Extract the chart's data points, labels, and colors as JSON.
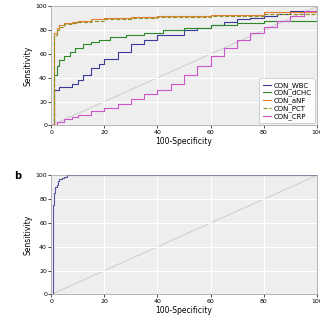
{
  "xlabel": "100-Specificity",
  "ylabel": "Sensitivity",
  "xlim": [
    0,
    100
  ],
  "ylim": [
    0,
    100
  ],
  "xticks": [
    0,
    20,
    40,
    60,
    80,
    100
  ],
  "yticks": [
    0,
    20,
    40,
    60,
    80,
    100
  ],
  "background_color": "#eeeeee",
  "grid_color": "#ffffff",
  "curves_a": {
    "CON_WBC": {
      "color": "#3a3a9a",
      "linestyle": "solid",
      "x": [
        0,
        1,
        2,
        3,
        5,
        8,
        10,
        12,
        15,
        18,
        20,
        25,
        30,
        35,
        40,
        50,
        55,
        60,
        65,
        70,
        75,
        80,
        85,
        90,
        100
      ],
      "y": [
        0,
        30,
        30,
        32,
        32,
        35,
        38,
        42,
        48,
        52,
        56,
        62,
        68,
        72,
        76,
        80,
        82,
        84,
        87,
        89,
        90,
        92,
        94,
        96,
        100
      ]
    },
    "CON_dCHC": {
      "color": "#2a8a2a",
      "linestyle": "solid",
      "x": [
        0,
        1,
        2,
        3,
        5,
        7,
        9,
        12,
        15,
        18,
        22,
        28,
        35,
        42,
        50,
        60,
        70,
        80,
        100
      ],
      "y": [
        0,
        42,
        50,
        55,
        58,
        62,
        65,
        68,
        70,
        72,
        74,
        76,
        78,
        80,
        82,
        84,
        86,
        88,
        100
      ]
    },
    "CON_aNF": {
      "color": "#e08030",
      "linestyle": "solid",
      "x": [
        0,
        1,
        2,
        3,
        5,
        8,
        10,
        15,
        20,
        30,
        40,
        60,
        80,
        100
      ],
      "y": [
        0,
        78,
        82,
        84,
        86,
        87,
        88,
        89,
        90,
        91,
        92,
        93,
        95,
        100
      ]
    },
    "CON_PCT": {
      "color": "#909020",
      "linestyle": "dashed",
      "x": [
        0,
        1,
        2,
        3,
        5,
        8,
        10,
        15,
        20,
        30,
        40,
        60,
        80,
        100
      ],
      "y": [
        0,
        76,
        80,
        83,
        85,
        86,
        87,
        88,
        89,
        90,
        91,
        92,
        94,
        100
      ]
    },
    "CON_CRP": {
      "color": "#cc55cc",
      "linestyle": "solid",
      "x": [
        0,
        2,
        5,
        8,
        10,
        15,
        20,
        25,
        30,
        35,
        40,
        45,
        50,
        55,
        60,
        65,
        70,
        75,
        80,
        85,
        90,
        95,
        100
      ],
      "y": [
        0,
        3,
        5,
        7,
        9,
        12,
        15,
        18,
        22,
        26,
        30,
        35,
        42,
        50,
        58,
        65,
        72,
        78,
        83,
        88,
        92,
        96,
        100
      ]
    }
  },
  "curve_b": {
    "color": "#5555aa",
    "linestyle": "solid",
    "x": [
      0,
      0.5,
      1,
      1.5,
      2,
      2.5,
      3,
      4,
      5,
      6,
      7,
      60,
      61,
      100
    ],
    "y": [
      0,
      75,
      85,
      90,
      92,
      95,
      97,
      98,
      99,
      100,
      100,
      100,
      100,
      100
    ]
  },
  "legend_fontsize": 5.0,
  "axis_fontsize": 5.5,
  "tick_fontsize": 4.5
}
